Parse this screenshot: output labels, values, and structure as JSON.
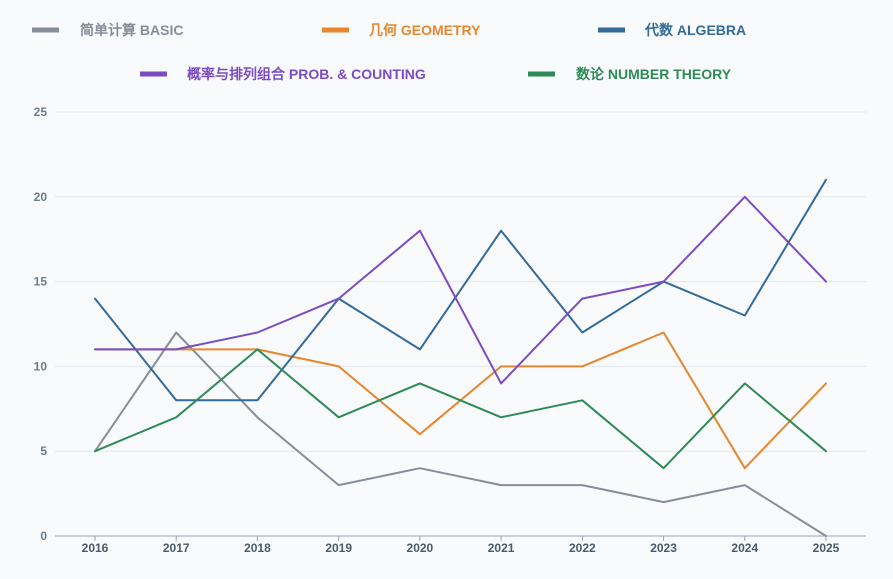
{
  "chart_data": {
    "type": "line",
    "title": "",
    "xlabel": "",
    "ylabel": "",
    "x": [
      "2016",
      "2017",
      "2018",
      "2019",
      "2020",
      "2021",
      "2022",
      "2023",
      "2024",
      "2025"
    ],
    "ylim": [
      0,
      25
    ],
    "yticks": [
      "0",
      "5",
      "10",
      "15",
      "20",
      "25"
    ],
    "grid": "horizontal",
    "legend_position": "top",
    "series": [
      {
        "name": "简单计算  BASIC",
        "color": "#868e9a",
        "values": [
          5,
          12,
          7,
          3,
          4,
          3,
          3,
          2,
          3,
          0
        ]
      },
      {
        "name": "几何  GEOMETRY",
        "color": "#e8862e",
        "values": [
          11,
          11,
          11,
          10,
          6,
          10,
          10,
          12,
          4,
          9
        ]
      },
      {
        "name": "代数  ALGEBRA",
        "color": "#336b99",
        "values": [
          14,
          8,
          8,
          14,
          11,
          18,
          12,
          15,
          13,
          21
        ]
      },
      {
        "name": "概率与排列组合  PROB. & COUNTING",
        "color": "#7b4cc6",
        "values": [
          11,
          11,
          12,
          14,
          18,
          9,
          14,
          15,
          20,
          15
        ]
      },
      {
        "name": "数论  NUMBER THEORY",
        "color": "#2e8b57",
        "values": [
          5,
          7,
          11,
          7,
          9,
          7,
          8,
          4,
          9,
          5
        ]
      }
    ]
  }
}
